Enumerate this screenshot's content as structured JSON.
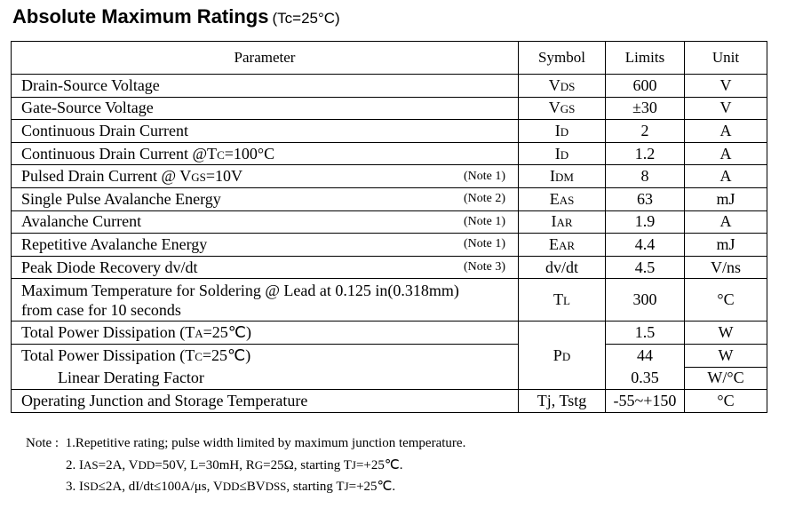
{
  "heading": {
    "title": "Absolute Maximum Ratings",
    "condition": "(Tc=25°C)"
  },
  "table": {
    "headers": {
      "parameter": "Parameter",
      "symbol": "Symbol",
      "limits": "Limits",
      "unit": "Unit"
    },
    "rows": [
      {
        "param": "Drain-Source Voltage",
        "sym_main": "V",
        "sym_sub": "DS",
        "limit": "600",
        "unit": "V"
      },
      {
        "param": "Gate-Source Voltage",
        "sym_main": "V",
        "sym_sub": "GS",
        "limit": "±30",
        "unit": "V"
      },
      {
        "param": "Continuous Drain Current",
        "sym_main": "I",
        "sym_sub": "D",
        "limit": "2",
        "unit": "A"
      },
      {
        "param_a": "Continuous Drain Current @T",
        "param_sub": "C",
        "param_b": "=100°C",
        "sym_main": "I",
        "sym_sub": "D",
        "limit": "1.2",
        "unit": "A"
      },
      {
        "param_a": "Pulsed Drain Current @ V",
        "param_sub": "GS",
        "param_b": "=10V",
        "note": "(Note 1)",
        "sym_main": "I",
        "sym_sub": "DM",
        "limit": "8",
        "unit": "A"
      },
      {
        "param": "Single Pulse Avalanche Energy",
        "note": "(Note 2)",
        "sym_main": "E",
        "sym_sub": "AS",
        "limit": "63",
        "unit": "mJ"
      },
      {
        "param": "Avalanche Current",
        "note": "(Note 1)",
        "sym_main": "I",
        "sym_sub": "AR",
        "limit": "1.9",
        "unit": "A"
      },
      {
        "param": "Repetitive Avalanche Energy",
        "note": "(Note 1)",
        "sym_main": "E",
        "sym_sub": "AR",
        "limit": "4.4",
        "unit": "mJ"
      },
      {
        "param": "Peak Diode Recovery dv/dt",
        "note": "(Note 3)",
        "symbol": "dv/dt",
        "limit": "4.5",
        "unit": "V/ns"
      },
      {
        "param_line1": "Maximum Temperature for Soldering @ Lead at 0.125 in(0.318mm)",
        "param_line2": "from case for 10 seconds",
        "sym_main": "T",
        "sym_sub": "L",
        "limit": "300",
        "unit": "°C"
      },
      {
        "param_a": "Total Power Dissipation (T",
        "param_sub": "A",
        "param_b": "=25℃)",
        "limit": "1.5",
        "unit": "W"
      },
      {
        "param_a": "Total Power Dissipation (T",
        "param_sub": "C",
        "param_b": "=25℃)",
        "limit": "44",
        "unit": "W"
      },
      {
        "param": "Linear Derating Factor",
        "limit": "0.35",
        "unit": "W/°C"
      },
      {
        "param": "Operating Junction and Storage Temperature",
        "symbol": "Tj, Tstg",
        "limit": "-55~+150",
        "unit": "°C"
      }
    ],
    "pd_symbol": {
      "main": "P",
      "sub": "D"
    }
  },
  "notes": {
    "label": "Note :",
    "n1": "1.Repetitive rating; pulse width limited by maximum junction temperature.",
    "n2": {
      "a": "2. I",
      "a_sub": "AS",
      "b": "=2A, V",
      "b_sub": "DD",
      "c": "=50V, L=30mH, R",
      "c_sub": "G",
      "d": "=25Ω, starting T",
      "d_sub": "J",
      "e": "=+25℃."
    },
    "n3": {
      "a": "3. I",
      "a_sub": "SD",
      "b": "≤2A, dI/dt≤100A/μs, V",
      "b_sub": "DD",
      "c": "≤BV",
      "c_sub": "DSS",
      "d": ", starting T",
      "d_sub": "J",
      "e": "=+25℃."
    }
  }
}
